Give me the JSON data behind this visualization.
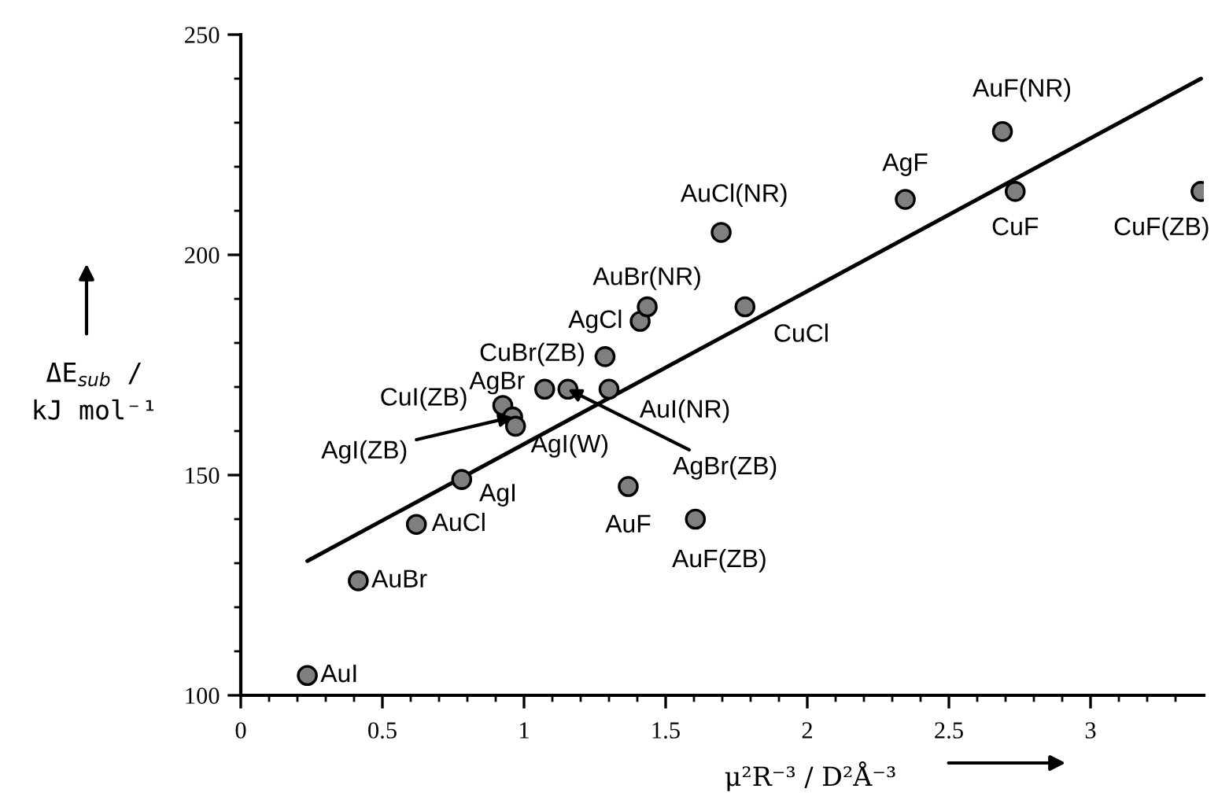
{
  "chart_data": {
    "type": "scatter",
    "xlabel": "μ²R⁻³ / D²Å⁻³",
    "ylabel": "ΔE$_{sub}$ /\nkJ mol⁻¹",
    "xlim": [
      0,
      3.4
    ],
    "ylim": [
      100,
      250
    ],
    "xticks": [
      0,
      {
        "value": 0.1,
        "label": null
      },
      {
        "value": 0.2,
        "label": null
      },
      {
        "value": 0.3,
        "label": null
      },
      {
        "value": 0.4,
        "label": null
      },
      0.5,
      {
        "value": 0.6,
        "label": null
      },
      {
        "value": 0.7,
        "label": null
      },
      {
        "value": 0.8,
        "label": null
      },
      {
        "value": 0.9,
        "label": null
      },
      1,
      {
        "value": 1.1,
        "label": null
      },
      {
        "value": 1.2,
        "label": null
      },
      {
        "value": 1.3,
        "label": null
      },
      {
        "value": 1.4,
        "label": null
      },
      1.5,
      {
        "value": 1.6,
        "label": null
      },
      {
        "value": 1.7,
        "label": null
      },
      {
        "value": 1.8,
        "label": null
      },
      {
        "value": 1.9,
        "label": null
      },
      2,
      {
        "value": 2.1,
        "label": null
      },
      {
        "value": 2.2,
        "label": null
      },
      {
        "value": 2.3,
        "label": null
      },
      {
        "value": 2.4,
        "label": null
      },
      2.5,
      {
        "value": 2.6,
        "label": null
      },
      {
        "value": 2.7,
        "label": null
      },
      {
        "value": 2.8,
        "label": null
      },
      {
        "value": 2.9,
        "label": null
      },
      3,
      {
        "value": 3.1,
        "label": null
      },
      {
        "value": 3.2,
        "label": null
      },
      {
        "value": 3.3,
        "label": null
      }
    ],
    "yticks": [
      100,
      {
        "value": 110,
        "label": null
      },
      {
        "value": 120,
        "label": null
      },
      {
        "value": 130,
        "label": null
      },
      {
        "value": 140,
        "label": null
      },
      150,
      {
        "value": 160,
        "label": null
      },
      {
        "value": 170,
        "label": null
      },
      {
        "value": 180,
        "label": null
      },
      {
        "value": 190,
        "label": null
      },
      200,
      {
        "value": 210,
        "label": null
      },
      {
        "value": 220,
        "label": null
      },
      {
        "value": 230,
        "label": null
      },
      {
        "value": 240,
        "label": null
      },
      250
    ],
    "series": [
      {
        "type": "scatter",
        "marker": "circle",
        "color": "#7f7f7f",
        "x": [
          0.235,
          0.415,
          0.62,
          0.78,
          0.925,
          0.96,
          0.97,
          1.073,
          1.155,
          1.3,
          1.286,
          1.41,
          1.435,
          1.78,
          1.368,
          1.605,
          1.696,
          2.346,
          2.689,
          2.734,
          3.39
        ],
        "values": [
          104.5,
          126,
          138.8,
          149,
          165.8,
          163.2,
          161.1,
          169.5,
          169.5,
          169.5,
          176.9,
          184.9,
          188.2,
          188.2,
          147.4,
          140,
          205.1,
          212.6,
          228,
          214.4,
          214.4
        ]
      },
      {
        "type": "line",
        "color": "#000000",
        "x": [
          0.235,
          3.39
        ],
        "values": [
          130.5,
          240
        ]
      }
    ],
    "annotations": [
      {
        "text": "AuI",
        "x": 0.235,
        "y": 104.5
      },
      {
        "text": "AuBr",
        "x": 0.415,
        "y": 126
      },
      {
        "text": "AuCl",
        "x": 0.62,
        "y": 138.8
      },
      {
        "text": "AgI",
        "x": 0.78,
        "y": 149
      },
      {
        "text": "CuI(ZB)",
        "x": 0.925,
        "y": 165.8
      },
      {
        "text": "AgI(ZB)",
        "x": 0.96,
        "y": 163.2
      },
      {
        "text": "AgI(W)",
        "x": 0.97,
        "y": 161.1
      },
      {
        "text": "AgBr",
        "x": 1.073,
        "y": 169.5
      },
      {
        "text": "AgBr(ZB)",
        "x": 1.155,
        "y": 169.5
      },
      {
        "text": "AuI(NR)",
        "x": 1.3,
        "y": 169.5
      },
      {
        "text": "CuBr(ZB)",
        "x": 1.286,
        "y": 176.9
      },
      {
        "text": "AgCl",
        "x": 1.41,
        "y": 184.9
      },
      {
        "text": "AuBr(NR)",
        "x": 1.435,
        "y": 188.2
      },
      {
        "text": "CuCl",
        "x": 1.78,
        "y": 188.2
      },
      {
        "text": "AuF",
        "x": 1.368,
        "y": 147.4
      },
      {
        "text": "AuF(ZB)",
        "x": 1.605,
        "y": 140
      },
      {
        "text": "AuCl(NR)",
        "x": 1.696,
        "y": 205.1
      },
      {
        "text": "AgF",
        "x": 2.346,
        "y": 212.6
      },
      {
        "text": "AuF(NR)",
        "x": 2.689,
        "y": 228
      },
      {
        "text": "CuF",
        "x": 2.734,
        "y": 214.4
      },
      {
        "text": "CuF(ZB)",
        "x": 3.39,
        "y": 214.4
      }
    ]
  }
}
